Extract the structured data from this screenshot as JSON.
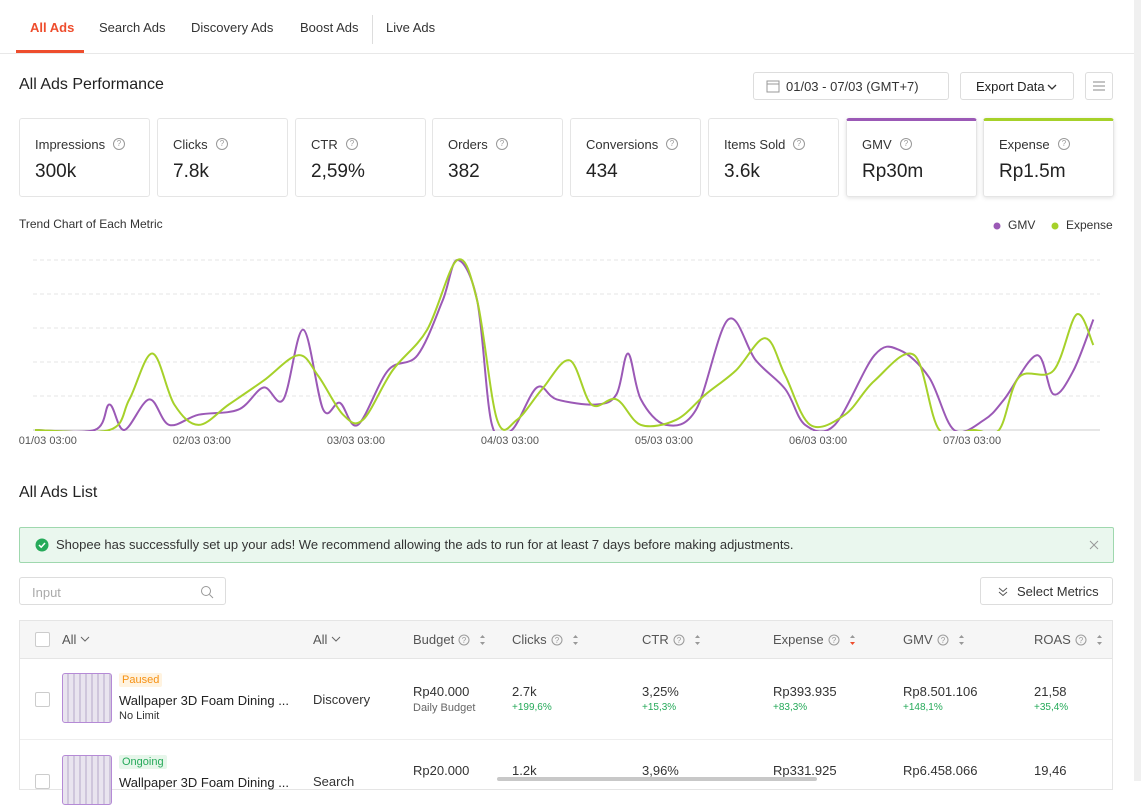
{
  "tabs": [
    "All Ads",
    "Search Ads",
    "Discovery Ads",
    "Boost Ads",
    "Live Ads"
  ],
  "performance": {
    "title": "All Ads Performance",
    "date_range": "01/03 - 07/03 (GMT+7)",
    "export": "Export Data",
    "metrics": [
      {
        "label": "Impressions",
        "value": "300k"
      },
      {
        "label": "Clicks",
        "value": "7.8k"
      },
      {
        "label": "CTR",
        "value": "2,59%"
      },
      {
        "label": "Orders",
        "value": "382"
      },
      {
        "label": "Conversions",
        "value": "434"
      },
      {
        "label": "Items Sold",
        "value": "3.6k"
      },
      {
        "label": "GMV",
        "value": "Rp30m"
      },
      {
        "label": "Expense",
        "value": "Rp1.5m"
      }
    ]
  },
  "chart_data": {
    "type": "line",
    "title": "Trend Chart of Each Metric",
    "xlim": [
      -2,
      163
    ],
    "ylim": [
      0,
      100
    ],
    "xticks": [
      {
        "value": 0,
        "label": "01/03 03:00"
      },
      {
        "value": 24,
        "label": "02/03 03:00"
      },
      {
        "value": 48,
        "label": "03/03 03:00"
      },
      {
        "value": 72,
        "label": "04/03 03:00"
      },
      {
        "value": 96,
        "label": "05/03 03:00"
      },
      {
        "value": 120,
        "label": "06/03 03:00"
      },
      {
        "value": 144,
        "label": "07/03 03:00"
      }
    ],
    "series": [
      {
        "name": "GMV",
        "color": "#9b59b6",
        "x": [
          -2,
          7.3,
          9.6,
          11.9,
          15.8,
          18.9,
          23.5,
          29.7,
          33.6,
          36.7,
          39.8,
          42.9,
          45.5,
          48.3,
          53,
          57.6,
          61.5,
          63.8,
          66.9,
          69.2,
          72.3,
          76.2,
          79.3,
          85.5,
          88.6,
          90.4,
          92.4,
          96.3,
          101,
          106,
          110.3,
          114.9,
          118,
          122.6,
          128.8,
          132.7,
          137.3,
          141.2,
          145.9,
          149,
          154.1,
          156.7,
          159.8,
          162.9
        ],
        "values": [
          0,
          0,
          15,
          0,
          18,
          3,
          9,
          12,
          25,
          18,
          59,
          12,
          16,
          3,
          35,
          44,
          76,
          100,
          76,
          3,
          0,
          25,
          18,
          15,
          21,
          45,
          18,
          3,
          12,
          65,
          41,
          24,
          3,
          3,
          44,
          47,
          31,
          0,
          6,
          18,
          44,
          21,
          35,
          65
        ]
      },
      {
        "name": "Expense",
        "color": "#a6d12a",
        "x": [
          -2,
          9.6,
          12.7,
          16.3,
          19.7,
          23.5,
          28.2,
          33.6,
          39,
          42.1,
          46,
          49.1,
          53.7,
          59.1,
          63.8,
          66.9,
          70,
          73.1,
          77,
          81.3,
          84.7,
          88.6,
          92.4,
          97.9,
          102.5,
          107.2,
          111.8,
          114.9,
          118.8,
          124.2,
          128.8,
          135,
          138.9,
          144.3,
          148.2,
          151.3,
          156.7,
          160.3,
          162.9
        ],
        "values": [
          0,
          0,
          18,
          45,
          15,
          3,
          15,
          29,
          44,
          32,
          9,
          6,
          35,
          59,
          100,
          76,
          6,
          6,
          24,
          41,
          15,
          18,
          3,
          6,
          21,
          35,
          54,
          32,
          3,
          9,
          29,
          44,
          0,
          0,
          0,
          31,
          35,
          68,
          50
        ]
      }
    ]
  },
  "list": {
    "title": "All Ads List",
    "notice": "Shopee has successfully set up your ads! We recommend allowing the ads to run for at least 7 days before making adjustments.",
    "search_placeholder": "Input",
    "select_metrics": "Select Metrics",
    "headers": [
      "All",
      "All",
      "Budget",
      "Clicks",
      "CTR",
      "Expense",
      "GMV",
      "ROAS"
    ],
    "rows": [
      {
        "status": "Paused",
        "name": "Wallpaper 3D Foam Dining ...",
        "limit": "No Limit",
        "type": "Discovery",
        "budget": "Rp40.000",
        "budget_note": "Daily Budget",
        "clicks": "2.7k",
        "clicks_change": "+199,6%",
        "ctr": "3,25%",
        "ctr_change": "+15,3%",
        "expense": "Rp393.935",
        "expense_change": "+83,3%",
        "gmv": "Rp8.501.106",
        "gmv_change": "+148,1%",
        "roas": "21,58",
        "roas_change": "+35,4%"
      },
      {
        "status": "Ongoing",
        "name": "Wallpaper 3D Foam Dining ...",
        "type": "Search",
        "budget": "Rp20.000",
        "clicks": "1.2k",
        "ctr": "3,96%",
        "expense": "Rp331.925",
        "gmv": "Rp6.458.066",
        "roas": "19,46"
      }
    ]
  }
}
